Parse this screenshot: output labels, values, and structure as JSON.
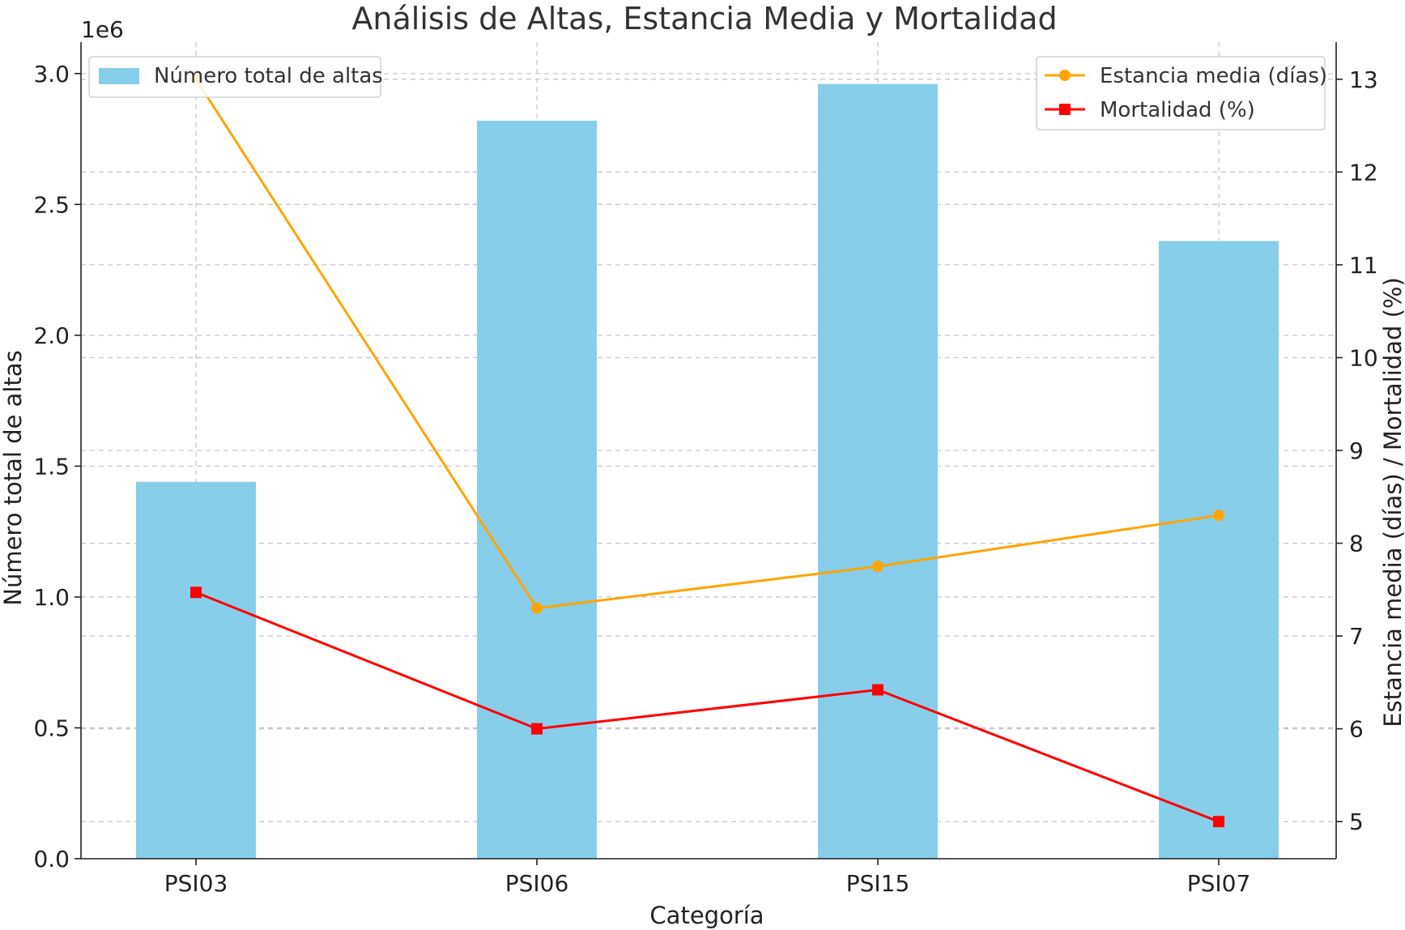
{
  "chart_data": {
    "type": "bar",
    "title": "Análisis de Altas, Estancia Media y Mortalidad",
    "xlabel": "Categoría",
    "categories": [
      "PSI03",
      "PSI06",
      "PSI15",
      "PSI07"
    ],
    "left_axis": {
      "label": "Número total de altas",
      "offset_text": "1e6",
      "ylim": [
        0,
        3.12
      ],
      "ticks": [
        0.0,
        0.5,
        1.0,
        1.5,
        2.0,
        2.5,
        3.0
      ],
      "tick_labels": [
        "0.0",
        "0.5",
        "1.0",
        "1.5",
        "2.0",
        "2.5",
        "3.0"
      ]
    },
    "right_axis": {
      "label": "Estancia media (días) / Mortalidad (%)",
      "ylim": [
        4.6,
        13.4
      ],
      "ticks": [
        5,
        6,
        7,
        8,
        9,
        10,
        11,
        12,
        13
      ],
      "tick_labels": [
        "5",
        "6",
        "7",
        "8",
        "9",
        "10",
        "11",
        "12",
        "13"
      ]
    },
    "bars": {
      "name": "Número total de altas",
      "values": [
        1.44,
        2.82,
        2.96,
        2.36
      ],
      "color": "#87CEEB"
    },
    "lines": [
      {
        "name": "Estancia media (días)",
        "values": [
          13.0,
          7.3,
          7.75,
          8.3
        ],
        "color": "#FFA500",
        "marker": "circle"
      },
      {
        "name": "Mortalidad (%)",
        "values": [
          7.47,
          6.0,
          6.42,
          5.0
        ],
        "color": "#FF0000",
        "marker": "square"
      }
    ],
    "grid": true,
    "legends": [
      {
        "placement": "top-left",
        "entries": [
          "Número total de altas"
        ]
      },
      {
        "placement": "top-right",
        "entries": [
          "Estancia media (días)",
          "Mortalidad (%)"
        ]
      }
    ]
  }
}
